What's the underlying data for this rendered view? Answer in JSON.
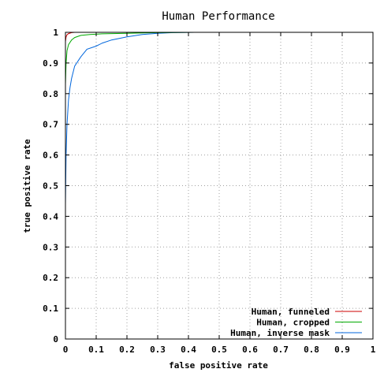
{
  "chart_data": {
    "type": "line",
    "title": "Human Performance",
    "xlabel": "false positive rate",
    "ylabel": "true positive rate",
    "xlim": [
      0,
      1
    ],
    "ylim": [
      0,
      1
    ],
    "grid": true,
    "legend_position": "bottom-right",
    "x_ticks": [
      "0",
      "0.1",
      "0.2",
      "0.3",
      "0.4",
      "0.5",
      "0.6",
      "0.7",
      "0.8",
      "0.9",
      "1"
    ],
    "y_ticks": [
      "0",
      "0.1",
      "0.2",
      "0.3",
      "0.4",
      "0.5",
      "0.6",
      "0.7",
      "0.8",
      "0.9",
      "1"
    ],
    "series": [
      {
        "name": "Human, funneled",
        "color": "#cc0000",
        "x": [
          0,
          0,
          0.002,
          0.005,
          0.01,
          0.02,
          0.03
        ],
        "y": [
          0,
          0.97,
          0.985,
          0.992,
          0.996,
          0.999,
          1.0
        ]
      },
      {
        "name": "Human, cropped",
        "color": "#00aa00",
        "x": [
          0,
          0,
          0.002,
          0.005,
          0.01,
          0.02,
          0.03,
          0.05,
          0.08,
          0.12,
          0.2,
          0.3,
          0.42
        ],
        "y": [
          0,
          0.83,
          0.9,
          0.94,
          0.96,
          0.975,
          0.983,
          0.99,
          0.993,
          0.995,
          0.997,
          0.999,
          1.0
        ]
      },
      {
        "name": "Human, inverse mask",
        "color": "#0066dd",
        "x": [
          0,
          0,
          0.002,
          0.005,
          0.01,
          0.015,
          0.02,
          0.03,
          0.05,
          0.07,
          0.1,
          0.12,
          0.15,
          0.2,
          0.25,
          0.3,
          0.35,
          0.42
        ],
        "y": [
          0,
          0.44,
          0.6,
          0.7,
          0.78,
          0.82,
          0.85,
          0.89,
          0.92,
          0.945,
          0.955,
          0.965,
          0.975,
          0.985,
          0.993,
          0.997,
          0.999,
          1.0
        ]
      }
    ]
  }
}
